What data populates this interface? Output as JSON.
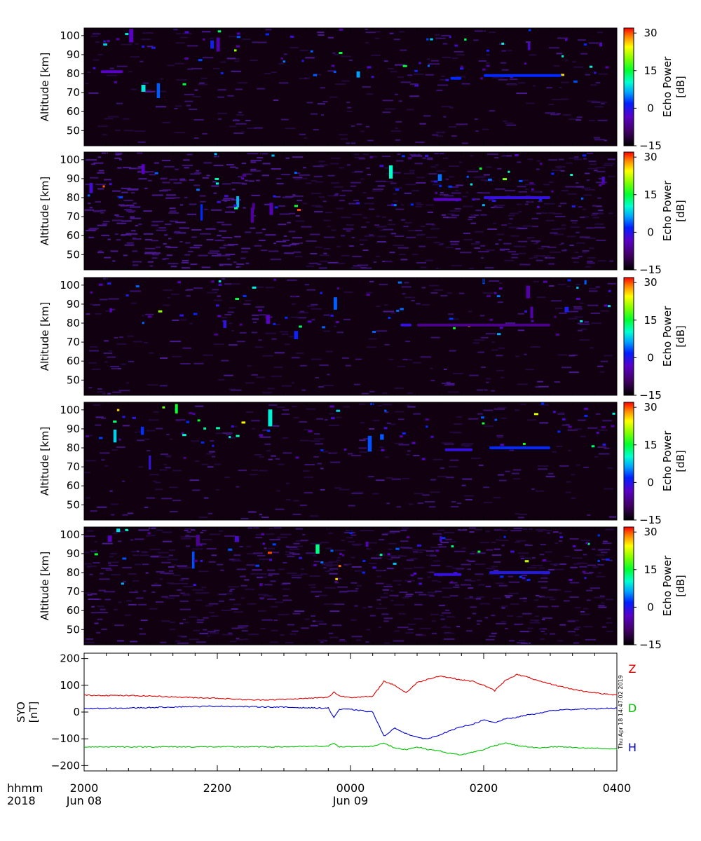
{
  "chart_data": [
    {
      "type": "heatmap",
      "panel": 1,
      "ylabel": "Altitude [km]",
      "ylim": [
        42,
        104
      ],
      "yticks": [
        50,
        60,
        70,
        80,
        90,
        100
      ],
      "colorbar": {
        "label": "Echo Power\n[dB]",
        "range": [
          -15,
          32
        ],
        "ticks": [
          -15,
          0,
          15,
          30
        ]
      },
      "x_range_hhmm": [
        "2000",
        "0400"
      ],
      "echo_layers": [
        {
          "start": "2015",
          "end": "2035",
          "alt_km": 81,
          "peak_dB": -5
        },
        {
          "start": "0130",
          "end": "0140",
          "alt_km": 77.5,
          "peak_dB": 0
        },
        {
          "start": "0200",
          "end": "0310",
          "alt_km": 79,
          "peak_dB": 0
        }
      ]
    },
    {
      "type": "heatmap",
      "panel": 2,
      "ylabel": "Altitude [km]",
      "ylim": [
        42,
        104
      ],
      "yticks": [
        50,
        60,
        70,
        80,
        90,
        100
      ],
      "colorbar": {
        "label": "Echo Power\n[dB]",
        "range": [
          -15,
          32
        ],
        "ticks": [
          -15,
          0,
          15,
          30
        ]
      },
      "x_range_hhmm": [
        "2000",
        "0400"
      ],
      "echo_layers": [
        {
          "start": "0115",
          "end": "0140",
          "alt_km": 79,
          "peak_dB": -5
        },
        {
          "start": "0200",
          "end": "0300",
          "alt_km": 80,
          "peak_dB": -3
        }
      ]
    },
    {
      "type": "heatmap",
      "panel": 3,
      "ylabel": "Altitude [km]",
      "ylim": [
        42,
        104
      ],
      "yticks": [
        50,
        60,
        70,
        80,
        90,
        100
      ],
      "colorbar": {
        "label": "Echo Power\n[dB]",
        "range": [
          -15,
          32
        ],
        "ticks": [
          -15,
          0,
          15,
          30
        ]
      },
      "x_range_hhmm": [
        "2000",
        "0400"
      ],
      "echo_layers": [
        {
          "start": "0045",
          "end": "0055",
          "alt_km": 79,
          "peak_dB": -3
        },
        {
          "start": "0100",
          "end": "0300",
          "alt_km": 79,
          "peak_dB": -8
        }
      ]
    },
    {
      "type": "heatmap",
      "panel": 4,
      "ylabel": "Altitude [km]",
      "ylim": [
        42,
        104
      ],
      "yticks": [
        50,
        60,
        70,
        80,
        90,
        100
      ],
      "colorbar": {
        "label": "Echo Power\n[dB]",
        "range": [
          -15,
          32
        ],
        "ticks": [
          -15,
          0,
          15,
          30
        ]
      },
      "x_range_hhmm": [
        "2000",
        "0400"
      ],
      "echo_layers": [
        {
          "start": "0125",
          "end": "0150",
          "alt_km": 79,
          "peak_dB": -3
        },
        {
          "start": "0205",
          "end": "0300",
          "alt_km": 80,
          "peak_dB": 0
        }
      ]
    },
    {
      "type": "heatmap",
      "panel": 5,
      "ylabel": "Altitude [km]",
      "ylim": [
        42,
        104
      ],
      "yticks": [
        50,
        60,
        70,
        80,
        90,
        100
      ],
      "colorbar": {
        "label": "Echo Power\n[dB]",
        "range": [
          -15,
          32
        ],
        "ticks": [
          -15,
          0,
          15,
          30
        ]
      },
      "x_range_hhmm": [
        "2000",
        "0400"
      ],
      "echo_layers": [
        {
          "start": "0115",
          "end": "0140",
          "alt_km": 79,
          "peak_dB": -3
        },
        {
          "start": "0205",
          "end": "0300",
          "alt_km": 80,
          "peak_dB": -2
        }
      ]
    },
    {
      "type": "line",
      "panel": 6,
      "ylabel": "SYO\n[nT]",
      "ylim": [
        -220,
        220
      ],
      "yticks": [
        -200,
        -100,
        0,
        100,
        200
      ],
      "x_range_hhmm": [
        "2000",
        "0400"
      ],
      "series": [
        {
          "name": "Z",
          "color": "#e00000",
          "x_hhmm": [
            "2000",
            "2030",
            "2100",
            "2130",
            "2200",
            "2230",
            "2300",
            "2330",
            "2340",
            "2345",
            "2350",
            "0000",
            "0020",
            "0030",
            "0040",
            "0050",
            "0100",
            "0110",
            "0120",
            "0130",
            "0140",
            "0150",
            "0200",
            "0210",
            "0220",
            "0230",
            "0240",
            "0250",
            "0300",
            "0310",
            "0320",
            "0330",
            "0340",
            "0350",
            "0400"
          ],
          "values": [
            63,
            62,
            60,
            55,
            52,
            45,
            47,
            53,
            55,
            75,
            60,
            55,
            58,
            115,
            100,
            72,
            110,
            123,
            135,
            128,
            120,
            115,
            100,
            80,
            120,
            140,
            130,
            115,
            105,
            95,
            85,
            78,
            72,
            67,
            63
          ]
        },
        {
          "name": "D",
          "color": "#00c000",
          "x_hhmm": [
            "2000",
            "2030",
            "2100",
            "2130",
            "2200",
            "2230",
            "2300",
            "2330",
            "2340",
            "2345",
            "2350",
            "0000",
            "0020",
            "0030",
            "0040",
            "0050",
            "0100",
            "0110",
            "0120",
            "0130",
            "0140",
            "0150",
            "0200",
            "0210",
            "0220",
            "0230",
            "0240",
            "0250",
            "0300",
            "0310",
            "0320",
            "0330",
            "0340",
            "0350",
            "0400"
          ],
          "values": [
            -130,
            -130,
            -130,
            -130,
            -130,
            -130,
            -130,
            -128,
            -128,
            -115,
            -130,
            -130,
            -128,
            -115,
            -135,
            -140,
            -130,
            -140,
            -145,
            -155,
            -160,
            -150,
            -140,
            -125,
            -115,
            -125,
            -130,
            -135,
            -130,
            -130,
            -133,
            -135,
            -135,
            -137,
            -138
          ]
        },
        {
          "name": "H",
          "color": "#0000d0",
          "x_hhmm": [
            "2000",
            "2030",
            "2100",
            "2130",
            "2200",
            "2230",
            "2300",
            "2330",
            "2340",
            "2345",
            "2350",
            "0000",
            "0020",
            "0030",
            "0040",
            "0050",
            "0100",
            "0110",
            "0120",
            "0130",
            "0140",
            "0150",
            "0200",
            "0210",
            "0220",
            "0230",
            "0240",
            "0250",
            "0300",
            "0310",
            "0320",
            "0330",
            "0340",
            "0350",
            "0400"
          ],
          "values": [
            13,
            14,
            17,
            20,
            22,
            20,
            18,
            15,
            15,
            -20,
            10,
            10,
            0,
            -90,
            -60,
            -80,
            -95,
            -100,
            -85,
            -70,
            -55,
            -45,
            -30,
            -40,
            -25,
            -20,
            -10,
            -5,
            5,
            8,
            10,
            12,
            12,
            14,
            14
          ]
        }
      ]
    }
  ],
  "labels": {
    "altitude": "Altitude [km]",
    "echo_power": "Echo Power",
    "db_unit": "[dB]",
    "syo": "SYO",
    "nt_unit": "[nT]",
    "y_alt_ticks": [
      "50",
      "60",
      "70",
      "80",
      "90",
      "100"
    ],
    "y_syo_ticks": [
      "200",
      "100",
      "0",
      "−100",
      "−200"
    ],
    "colorbar_ticks": [
      "30",
      "15",
      "0",
      "−15"
    ],
    "x_ticks": [
      "2000",
      "2200",
      "0000",
      "0200",
      "0400"
    ],
    "x_dates": [
      {
        "text": "Jun 08"
      },
      {
        "text": "Jun 09"
      }
    ],
    "hhmm": "hhmm",
    "year": "2018",
    "legend": {
      "Z": "Z",
      "D": "D",
      "H": "H"
    },
    "stamp": "Thu Apr 18 14:47:02 2019"
  },
  "colors": {
    "Z": "#e00000",
    "D": "#00c000",
    "H": "#0000d0",
    "heatmap_background": "#100010",
    "axis": "#000000"
  }
}
